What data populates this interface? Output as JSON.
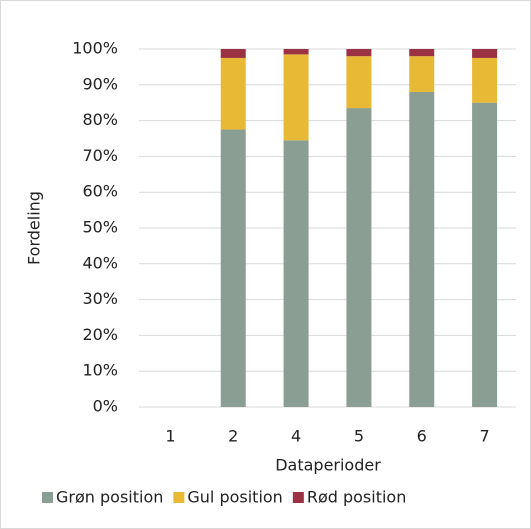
{
  "chart_data": {
    "type": "stacked_bar",
    "y_label": "Fordeling",
    "x_label": "Dataperioder",
    "categories": [
      "1",
      "2",
      "4",
      "5",
      "6",
      "7"
    ],
    "series": [
      {
        "name": "Grøn position",
        "color": "#8a9e94",
        "values": [
          null,
          77.5,
          74.5,
          83.5,
          88,
          85
        ]
      },
      {
        "name": "Gul position",
        "color": "#e8b935",
        "values": [
          null,
          20,
          24,
          14.5,
          10,
          12.5
        ]
      },
      {
        "name": "Rød position",
        "color": "#9b3244",
        "values": [
          null,
          2.5,
          1.5,
          2,
          2,
          2.5
        ]
      }
    ],
    "ylim": [
      0,
      100
    ],
    "yticks": [
      {
        "value": 0,
        "label": "0%"
      },
      {
        "value": 10,
        "label": "10%"
      },
      {
        "value": 20,
        "label": "20%"
      },
      {
        "value": 30,
        "label": "30%"
      },
      {
        "value": 40,
        "label": "40%"
      },
      {
        "value": 50,
        "label": "50%"
      },
      {
        "value": 60,
        "label": "60%"
      },
      {
        "value": 70,
        "label": "70%"
      },
      {
        "value": 80,
        "label": "80%"
      },
      {
        "value": 90,
        "label": "90%"
      },
      {
        "value": 100,
        "label": "100%"
      }
    ],
    "grid": true,
    "legend": "bottom"
  }
}
